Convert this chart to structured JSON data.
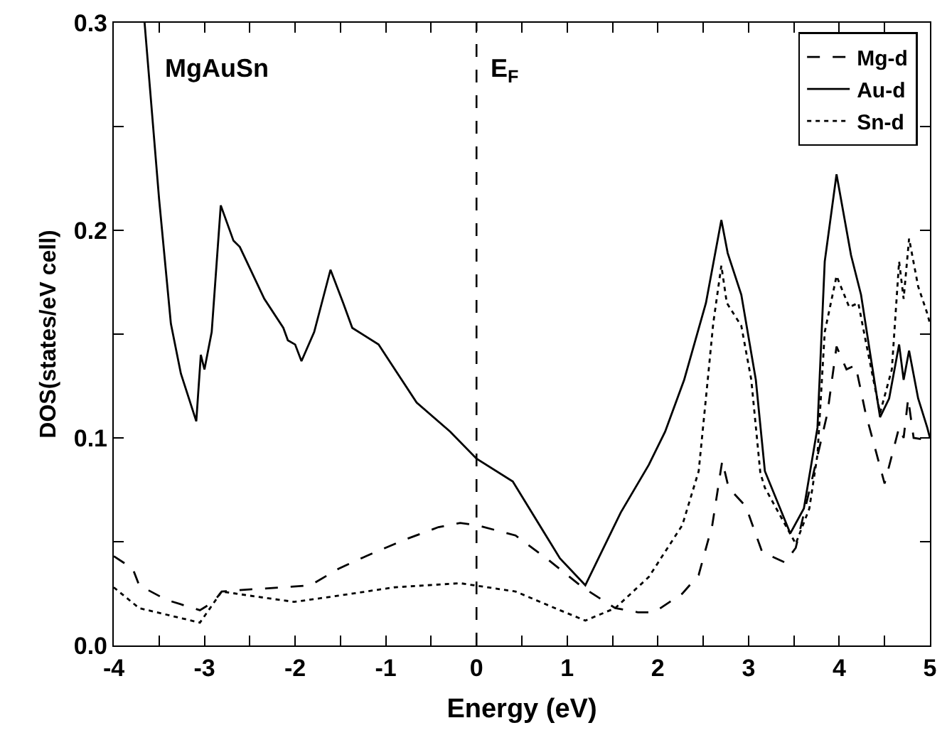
{
  "chart_data": {
    "type": "line",
    "xlabel": "Energy (eV)",
    "ylabel": "DOS(states/eV cell)",
    "annotations": [
      "MgAuSn"
    ],
    "xlim": [
      -4,
      5
    ],
    "ylim": [
      0,
      0.3
    ],
    "xticks": [
      -4,
      {
        "value": -3.5,
        "label": null
      },
      -3,
      {
        "value": -2.5,
        "label": null
      },
      -2,
      {
        "value": -1.5,
        "label": null
      },
      -1,
      {
        "value": -0.5,
        "label": null
      },
      0,
      {
        "value": 0.5,
        "label": null
      },
      1,
      {
        "value": 1.5,
        "label": null
      },
      2,
      {
        "value": 2.5,
        "label": null
      },
      3,
      {
        "value": 3.5,
        "label": null
      },
      4,
      {
        "value": 4.5,
        "label": null
      },
      5
    ],
    "yticks": [
      {
        "value": 0,
        "label": "0.0"
      },
      {
        "value": 0.05,
        "label": null
      },
      {
        "value": 0.1,
        "label": "0.1"
      },
      {
        "value": 0.15,
        "label": null
      },
      {
        "value": 0.2,
        "label": "0.2"
      },
      {
        "value": 0.25,
        "label": null
      },
      {
        "value": 0.3,
        "label": "0.3"
      }
    ],
    "grid": false,
    "legend": "top right",
    "marker": "none",
    "ref_lines": [
      {
        "axis": "x",
        "value": 0,
        "label": "E$_{F}$",
        "color": "#000000",
        "line_style": "dashed"
      }
    ],
    "series": [
      {
        "name": "Mg-d",
        "color": "#000000",
        "line_style": "dashed",
        "x": [
          -4,
          -3.79,
          -3.72,
          -3.42,
          -3.05,
          -2.9,
          -2.81,
          -2.5,
          -2.14,
          -1.83,
          -1.52,
          -1.22,
          -0.79,
          -0.42,
          -0.18,
          0,
          0.43,
          0.8,
          1.17,
          1.53,
          1.78,
          1.96,
          2.27,
          2.45,
          2.6,
          2.71,
          2.78,
          2.97,
          3.15,
          3.4,
          3.52,
          3.7,
          3.87,
          3.97,
          4.08,
          4.18,
          4.29,
          4.5,
          4.66,
          4.71,
          4.76,
          4.82,
          4.97,
          5
        ],
        "values": [
          0.043,
          0.037,
          0.029,
          0.022,
          0.017,
          0.021,
          0.026,
          0.027,
          0.028,
          0.029,
          0.037,
          0.043,
          0.051,
          0.057,
          0.059,
          0.058,
          0.053,
          0.041,
          0.028,
          0.018,
          0.016,
          0.016,
          0.025,
          0.034,
          0.058,
          0.089,
          0.076,
          0.067,
          0.045,
          0.04,
          0.047,
          0.08,
          0.112,
          0.144,
          0.133,
          0.135,
          0.112,
          0.078,
          0.105,
          0.1,
          0.119,
          0.1,
          0.099,
          0.1
        ]
      },
      {
        "name": "Au-d",
        "color": "#000000",
        "line_style": "solid",
        "x": [
          -3.66,
          -3.5,
          -3.37,
          -3.26,
          -3.09,
          -3.04,
          -3,
          -2.92,
          -2.82,
          -2.68,
          -2.61,
          -2.34,
          -2.13,
          -2.08,
          -2,
          -1.93,
          -1.79,
          -1.61,
          -1.47,
          -1.37,
          -1.08,
          -0.66,
          -0.29,
          0,
          0.4,
          0.92,
          1.2,
          1.59,
          1.9,
          2.08,
          2.29,
          2.53,
          2.7,
          2.77,
          2.92,
          3.08,
          3.18,
          3.46,
          3.61,
          3.76,
          3.84,
          3.97,
          4.13,
          4.24,
          4.45,
          4.55,
          4.66,
          4.71,
          4.77,
          4.87,
          4.97,
          5
        ],
        "values": [
          0.3,
          0.215,
          0.155,
          0.131,
          0.108,
          0.14,
          0.133,
          0.151,
          0.212,
          0.195,
          0.192,
          0.167,
          0.153,
          0.147,
          0.145,
          0.137,
          0.151,
          0.181,
          0.165,
          0.153,
          0.145,
          0.117,
          0.103,
          0.09,
          0.079,
          0.042,
          0.029,
          0.064,
          0.087,
          0.103,
          0.128,
          0.165,
          0.205,
          0.189,
          0.169,
          0.128,
          0.084,
          0.054,
          0.066,
          0.105,
          0.185,
          0.227,
          0.188,
          0.169,
          0.11,
          0.119,
          0.145,
          0.128,
          0.142,
          0.119,
          0.105,
          0.1
        ]
      },
      {
        "name": "Sn-d",
        "color": "#000000",
        "line_style": "dotted",
        "x": [
          -4,
          -3.72,
          -3.05,
          -2.81,
          -2.5,
          -2.01,
          -1.52,
          -0.91,
          -0.18,
          0.43,
          0.92,
          1.2,
          1.53,
          1.9,
          2.27,
          2.45,
          2.55,
          2.61,
          2.7,
          2.76,
          2.92,
          3.03,
          3.13,
          3.18,
          3.52,
          3.67,
          3.76,
          3.84,
          3.97,
          4.11,
          4.21,
          4.29,
          4.45,
          4.58,
          4.66,
          4.71,
          4.77,
          4.87,
          4.97,
          5
        ],
        "values": [
          0.028,
          0.018,
          0.011,
          0.026,
          0.024,
          0.021,
          0.024,
          0.028,
          0.03,
          0.026,
          0.017,
          0.012,
          0.018,
          0.033,
          0.058,
          0.084,
          0.128,
          0.155,
          0.183,
          0.165,
          0.154,
          0.128,
          0.083,
          0.076,
          0.049,
          0.066,
          0.092,
          0.151,
          0.178,
          0.163,
          0.165,
          0.147,
          0.112,
          0.133,
          0.185,
          0.167,
          0.196,
          0.173,
          0.16,
          0.155
        ]
      }
    ]
  }
}
